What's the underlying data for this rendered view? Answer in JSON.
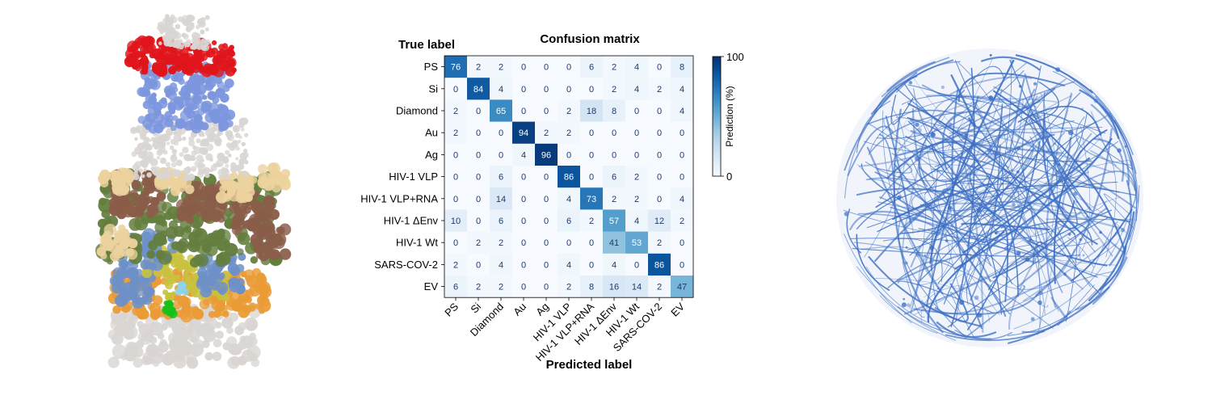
{
  "chart_data": {
    "type": "heatmap",
    "title": "Confusion matrix",
    "xlabel": "Predicted label",
    "ylabel": "True label",
    "colorbar": {
      "label": "Prediction (%)",
      "min": 0,
      "max": 100,
      "min_label": "0",
      "max_label": "100",
      "colormap": "Blues",
      "color_low": "#f7fbff",
      "color_high": "#08306b"
    },
    "row_labels": [
      "PS",
      "Si",
      "Diamond",
      "Au",
      "Ag",
      "HIV-1 VLP",
      "HIV-1 VLP+RNA",
      "HIV-1 ΔEnv",
      "HIV-1 Wt",
      "SARS-COV-2",
      "EV"
    ],
    "col_labels": [
      "PS",
      "Si",
      "Diamond",
      "Au",
      "Ag",
      "HIV-1 VLP",
      "HIV-1 VLP+RNA",
      "HIV-1 ΔEnv",
      "HIV-1 Wt",
      "SARS-COV-2",
      "EV"
    ],
    "values": [
      [
        76,
        2,
        2,
        0,
        0,
        0,
        6,
        2,
        4,
        0,
        8
      ],
      [
        0,
        84,
        4,
        0,
        0,
        0,
        0,
        2,
        4,
        2,
        4
      ],
      [
        2,
        0,
        65,
        0,
        0,
        2,
        18,
        8,
        0,
        0,
        4
      ],
      [
        2,
        0,
        0,
        94,
        2,
        2,
        0,
        0,
        0,
        0,
        0
      ],
      [
        0,
        0,
        0,
        4,
        96,
        0,
        0,
        0,
        0,
        0,
        0
      ],
      [
        0,
        0,
        6,
        0,
        0,
        86,
        0,
        6,
        2,
        0,
        0
      ],
      [
        0,
        0,
        14,
        0,
        0,
        4,
        73,
        2,
        2,
        0,
        4
      ],
      [
        10,
        0,
        6,
        0,
        0,
        6,
        2,
        57,
        4,
        12,
        2
      ],
      [
        0,
        2,
        2,
        0,
        0,
        0,
        0,
        41,
        53,
        2,
        0
      ],
      [
        2,
        0,
        4,
        0,
        0,
        4,
        0,
        4,
        0,
        86,
        0
      ],
      [
        6,
        2,
        2,
        0,
        0,
        2,
        8,
        16,
        14,
        2,
        47
      ]
    ]
  },
  "left_image": {
    "palette": {
      "red": "#e0151b",
      "periwinkle": "#7c96de",
      "grey": "#d9d5d2",
      "brown": "#8a5d49",
      "olive": "#647e3e",
      "tan": "#ecd29d",
      "steel_blue": "#6d90c8",
      "yellow": "#c9c23f",
      "orange": "#ea9b35",
      "green": "#18c118",
      "cyan": "#8fd3e8"
    }
  },
  "right_image": {
    "palette": {
      "fiber": "#3d6fc4",
      "fill": "#e6ecf8"
    }
  }
}
